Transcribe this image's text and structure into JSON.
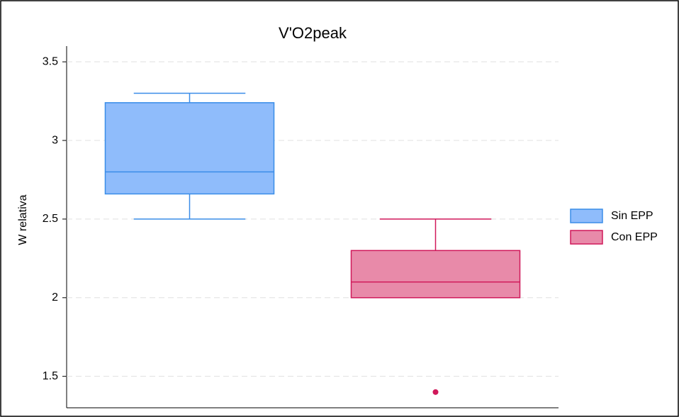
{
  "chart_data": {
    "type": "box",
    "title": "V'O2peak",
    "ylabel": "W relativa",
    "ylim": [
      1.3,
      3.6
    ],
    "yticks": [
      1.5,
      2,
      2.5,
      3,
      3.5
    ],
    "grid": true,
    "legend": "right",
    "series": [
      {
        "name": "Sin EPP",
        "color": "#3a8de8",
        "fill": "#8fbcfb",
        "min": 2.5,
        "q1": 2.66,
        "median": 2.8,
        "q3": 3.24,
        "max": 3.3,
        "outliers": []
      },
      {
        "name": "Con EPP",
        "color": "#d0185a",
        "fill": "#e88aa9",
        "min": 2.0,
        "q1": 2.0,
        "median": 2.1,
        "q3": 2.3,
        "max": 2.5,
        "outliers": [
          1.4
        ]
      }
    ]
  }
}
